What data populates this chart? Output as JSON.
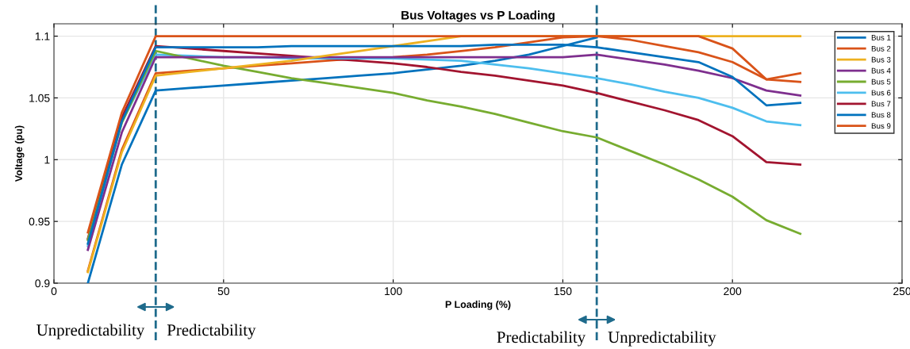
{
  "chart_data": {
    "type": "line",
    "title": "Bus Voltages vs P Loading",
    "xlabel": "P Loading (%)",
    "ylabel": "Voltage (pu)",
    "x": [
      10,
      20,
      30,
      40,
      50,
      60,
      70,
      80,
      90,
      100,
      110,
      120,
      130,
      140,
      150,
      160,
      170,
      180,
      190,
      200,
      210,
      220
    ],
    "series": [
      {
        "name": "Bus 1",
        "color": "#0072bd",
        "values": [
          0.932,
          1.031,
          1.091,
          1.091,
          1.091,
          1.091,
          1.092,
          1.092,
          1.092,
          1.092,
          1.092,
          1.092,
          1.093,
          1.093,
          1.093,
          1.091,
          1.087,
          1.083,
          1.079,
          1.067,
          1.044,
          1.046
        ]
      },
      {
        "name": "Bus 2",
        "color": "#d95319",
        "values": [
          0.941,
          1.038,
          1.1,
          1.1,
          1.1,
          1.1,
          1.1,
          1.1,
          1.1,
          1.1,
          1.1,
          1.1,
          1.1,
          1.1,
          1.1,
          1.1,
          1.1,
          1.1,
          1.1,
          1.09,
          1.065,
          1.07
        ]
      },
      {
        "name": "Bus 3",
        "color": "#edb120",
        "values": [
          0.909,
          1.006,
          1.068,
          1.071,
          1.074,
          1.077,
          1.08,
          1.084,
          1.088,
          1.092,
          1.096,
          1.1,
          1.1,
          1.1,
          1.1,
          1.1,
          1.1,
          1.1,
          1.1,
          1.1,
          1.1,
          1.1
        ]
      },
      {
        "name": "Bus 4",
        "color": "#7e2f8e",
        "values": [
          0.927,
          1.022,
          1.083,
          1.083,
          1.083,
          1.083,
          1.083,
          1.083,
          1.083,
          1.083,
          1.083,
          1.083,
          1.083,
          1.083,
          1.083,
          1.085,
          1.081,
          1.077,
          1.072,
          1.066,
          1.056,
          1.052
        ]
      },
      {
        "name": "Bus 5",
        "color": "#77ac30",
        "values": [
          0.935,
          1.03,
          1.088,
          1.082,
          1.076,
          1.071,
          1.066,
          1.062,
          1.058,
          1.054,
          1.048,
          1.043,
          1.037,
          1.03,
          1.023,
          1.018,
          1.007,
          0.996,
          0.984,
          0.97,
          0.951,
          0.94
        ]
      },
      {
        "name": "Bus 6",
        "color": "#4dbeee",
        "values": [
          0.93,
          1.03,
          1.085,
          1.084,
          1.083,
          1.083,
          1.082,
          1.082,
          1.082,
          1.082,
          1.081,
          1.08,
          1.077,
          1.074,
          1.07,
          1.066,
          1.061,
          1.055,
          1.05,
          1.042,
          1.031,
          1.028
        ]
      },
      {
        "name": "Bus 7",
        "color": "#a2142f",
        "values": [
          0.936,
          1.034,
          1.092,
          1.09,
          1.088,
          1.086,
          1.084,
          1.082,
          1.08,
          1.078,
          1.075,
          1.071,
          1.068,
          1.064,
          1.06,
          1.054,
          1.047,
          1.04,
          1.032,
          1.019,
          0.998,
          0.996
        ]
      },
      {
        "name": "Bus 8",
        "color": "#0072bd",
        "values": [
          0.9,
          0.996,
          1.056,
          1.058,
          1.06,
          1.062,
          1.064,
          1.066,
          1.068,
          1.07,
          1.073,
          1.076,
          1.08,
          1.085,
          1.092,
          1.099,
          null,
          null,
          null,
          null,
          null,
          null
        ]
      },
      {
        "name": "Bus 9",
        "color": "#d95319",
        "values": [
          0.91,
          1.008,
          1.07,
          1.072,
          1.074,
          1.076,
          1.078,
          1.08,
          1.082,
          1.083,
          1.085,
          1.088,
          1.091,
          1.095,
          1.099,
          1.1,
          1.097,
          1.092,
          1.087,
          1.079,
          1.065,
          1.063
        ]
      }
    ],
    "xlim": [
      0,
      250
    ],
    "xticks": [
      0,
      50,
      100,
      150,
      200,
      250
    ],
    "ylim": [
      0.9,
      1.11
    ],
    "yticks": [
      0.9,
      0.95,
      1,
      1.05,
      1.1
    ],
    "ref_lines": [
      {
        "axis": "x",
        "value": 30,
        "color": "#1f6b8c",
        "line_style": "dashed"
      },
      {
        "axis": "x",
        "value": 160,
        "color": "#1f6b8c",
        "line_style": "dashed"
      }
    ],
    "annotations": [
      "Unpredictability",
      "Predictability",
      "Predictability",
      "Unpredictability"
    ],
    "grid": true,
    "legend": "top right",
    "marker": "none",
    "line_style": "solid"
  }
}
